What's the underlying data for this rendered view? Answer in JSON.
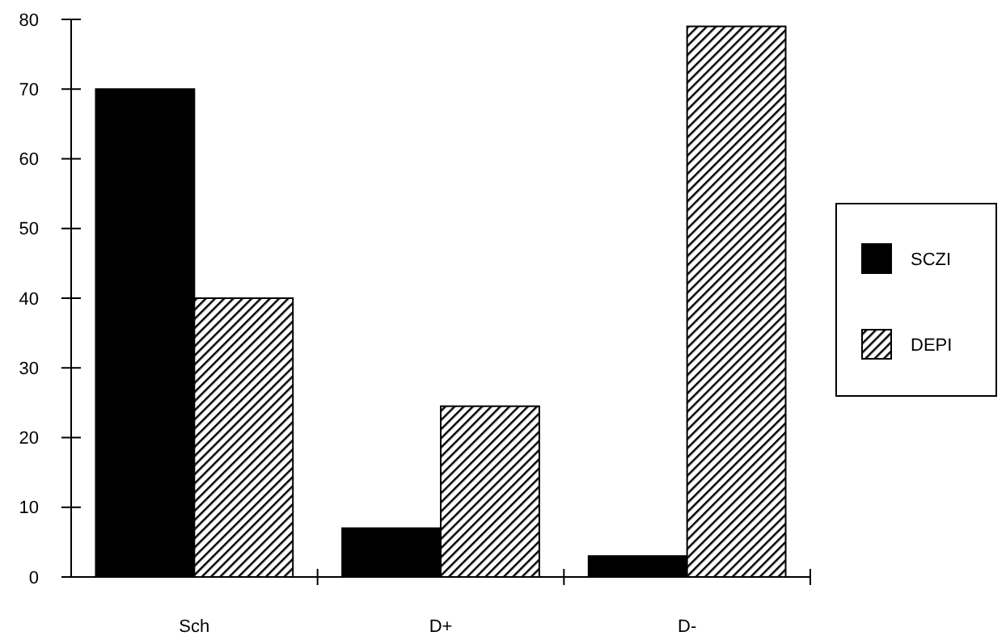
{
  "chart_data": {
    "type": "bar",
    "categories": [
      "Sch",
      "D+",
      "D-"
    ],
    "series": [
      {
        "name": "SCZI",
        "color": "#000000",
        "values": [
          70,
          7,
          3
        ]
      },
      {
        "name": "DEPI",
        "color": "#000000",
        "values": [
          40,
          24.5,
          79
        ]
      }
    ],
    "ylim": [
      0,
      80
    ],
    "yticks": [
      0,
      10,
      20,
      30,
      40,
      50,
      60,
      70,
      80
    ],
    "grid": false,
    "legend": "right"
  }
}
